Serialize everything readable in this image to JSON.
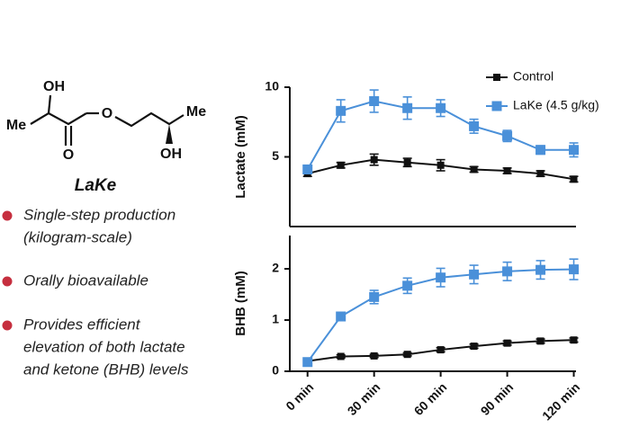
{
  "compound": {
    "atoms": [
      "OH",
      "Me",
      "O",
      "O",
      "Me",
      "OH"
    ],
    "name": "LaKe"
  },
  "bullets": [
    [
      "Single-step production",
      "(kilogram-scale)"
    ],
    [
      "Orally bioavailable"
    ],
    [
      "Provides efficient",
      "elevation of both lactate",
      "and ketone (BHB) levels"
    ]
  ],
  "chart_data": [
    {
      "type": "line",
      "ylabel": "Lactate (mM)",
      "x": [
        0,
        15,
        30,
        45,
        60,
        75,
        90,
        105,
        120
      ],
      "xlim": [
        -8,
        121
      ],
      "ylim": [
        0,
        10
      ],
      "yticks": [
        5,
        10
      ],
      "legend": "top-right",
      "series": [
        {
          "name": "Control",
          "color": "#111111",
          "values": [
            3.8,
            4.4,
            4.8,
            4.6,
            4.4,
            4.1,
            4.0,
            3.8,
            3.4
          ],
          "errors": [
            0.2,
            0.2,
            0.4,
            0.3,
            0.4,
            0.2,
            0.2,
            0.2,
            0.2
          ]
        },
        {
          "name": "LaKe (4.5 g/kg)",
          "color": "#4a90d9",
          "values": [
            4.1,
            8.3,
            9.0,
            8.5,
            8.5,
            7.2,
            6.5,
            5.5,
            5.5
          ],
          "errors": [
            0.3,
            0.8,
            0.8,
            0.8,
            0.6,
            0.5,
            0.4,
            0.3,
            0.5
          ]
        }
      ]
    },
    {
      "type": "line",
      "ylabel": "BHB (mM)",
      "x": [
        0,
        15,
        30,
        45,
        60,
        75,
        90,
        105,
        120
      ],
      "xlim": [
        -8,
        121
      ],
      "xticks": [
        {
          "value": 0,
          "label": "0 min"
        },
        {
          "value": 30,
          "label": "30 min"
        },
        {
          "value": 60,
          "label": "60 min"
        },
        {
          "value": 90,
          "label": "90 min"
        },
        {
          "value": 120,
          "label": "120 min"
        }
      ],
      "ylim": [
        0,
        2.65
      ],
      "yticks": [
        0,
        1,
        2
      ],
      "series": [
        {
          "color": "#111111",
          "values": [
            0.2,
            0.29,
            0.3,
            0.33,
            0.42,
            0.49,
            0.55,
            0.59,
            0.61
          ],
          "errors": [
            0.03,
            0.03,
            0.03,
            0.03,
            0.04,
            0.04,
            0.04,
            0.04,
            0.04
          ]
        },
        {
          "color": "#4a90d9",
          "values": [
            0.18,
            1.07,
            1.45,
            1.67,
            1.83,
            1.89,
            1.95,
            1.98,
            1.99
          ],
          "errors": [
            0.05,
            0.08,
            0.13,
            0.15,
            0.18,
            0.18,
            0.18,
            0.18,
            0.2
          ]
        }
      ]
    }
  ]
}
